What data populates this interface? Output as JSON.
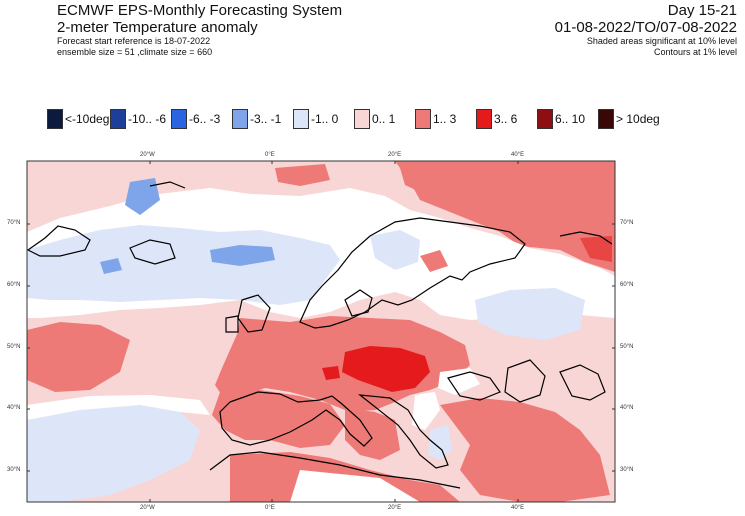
{
  "header": {
    "system": "ECMWF EPS-Monthly Forecasting System",
    "product": "2-meter Temperature anomaly",
    "start_ref": "Forecast start reference is 18-07-2022",
    "ensemble": "ensemble size = 51 ,climate size = 660",
    "day_range": "Day 15-21",
    "valid_range": "01-08-2022/TO/07-08-2022",
    "shaded_note": "Shaded areas significant at 10% level",
    "contours_note": "Contours at 1% level"
  },
  "legend": [
    {
      "label": "<-10deg",
      "color": "#0b1a3d"
    },
    {
      "label": "-10.. -6",
      "color": "#1d3f9a"
    },
    {
      "label": "-6.. -3",
      "color": "#2a64e0"
    },
    {
      "label": "-3.. -1",
      "color": "#7ea4ea"
    },
    {
      "label": "-1.. 0",
      "color": "#dde5f8"
    },
    {
      "label": "0.. 1",
      "color": "#f8d6d6"
    },
    {
      "label": "1.. 3",
      "color": "#ee7a78"
    },
    {
      "label": "3.. 6",
      "color": "#e41a1c"
    },
    {
      "label": "6.. 10",
      "color": "#8e0f12"
    },
    {
      "label": "> 10deg",
      "color": "#3a0707"
    }
  ],
  "axes": {
    "lon_top": [
      "20°W",
      "0°E",
      "20°E",
      "40°E"
    ],
    "lon_bottom": [
      "20°W",
      "0°E",
      "20°E",
      "40°E"
    ],
    "lat_left": [
      "70°N",
      "60°N",
      "50°N",
      "40°N",
      "30°N"
    ],
    "lat_right": [
      "70°N",
      "60°N",
      "50°N",
      "40°N",
      "30°N"
    ]
  },
  "colors": {
    "frame": "#333333",
    "coast": "#000000"
  }
}
